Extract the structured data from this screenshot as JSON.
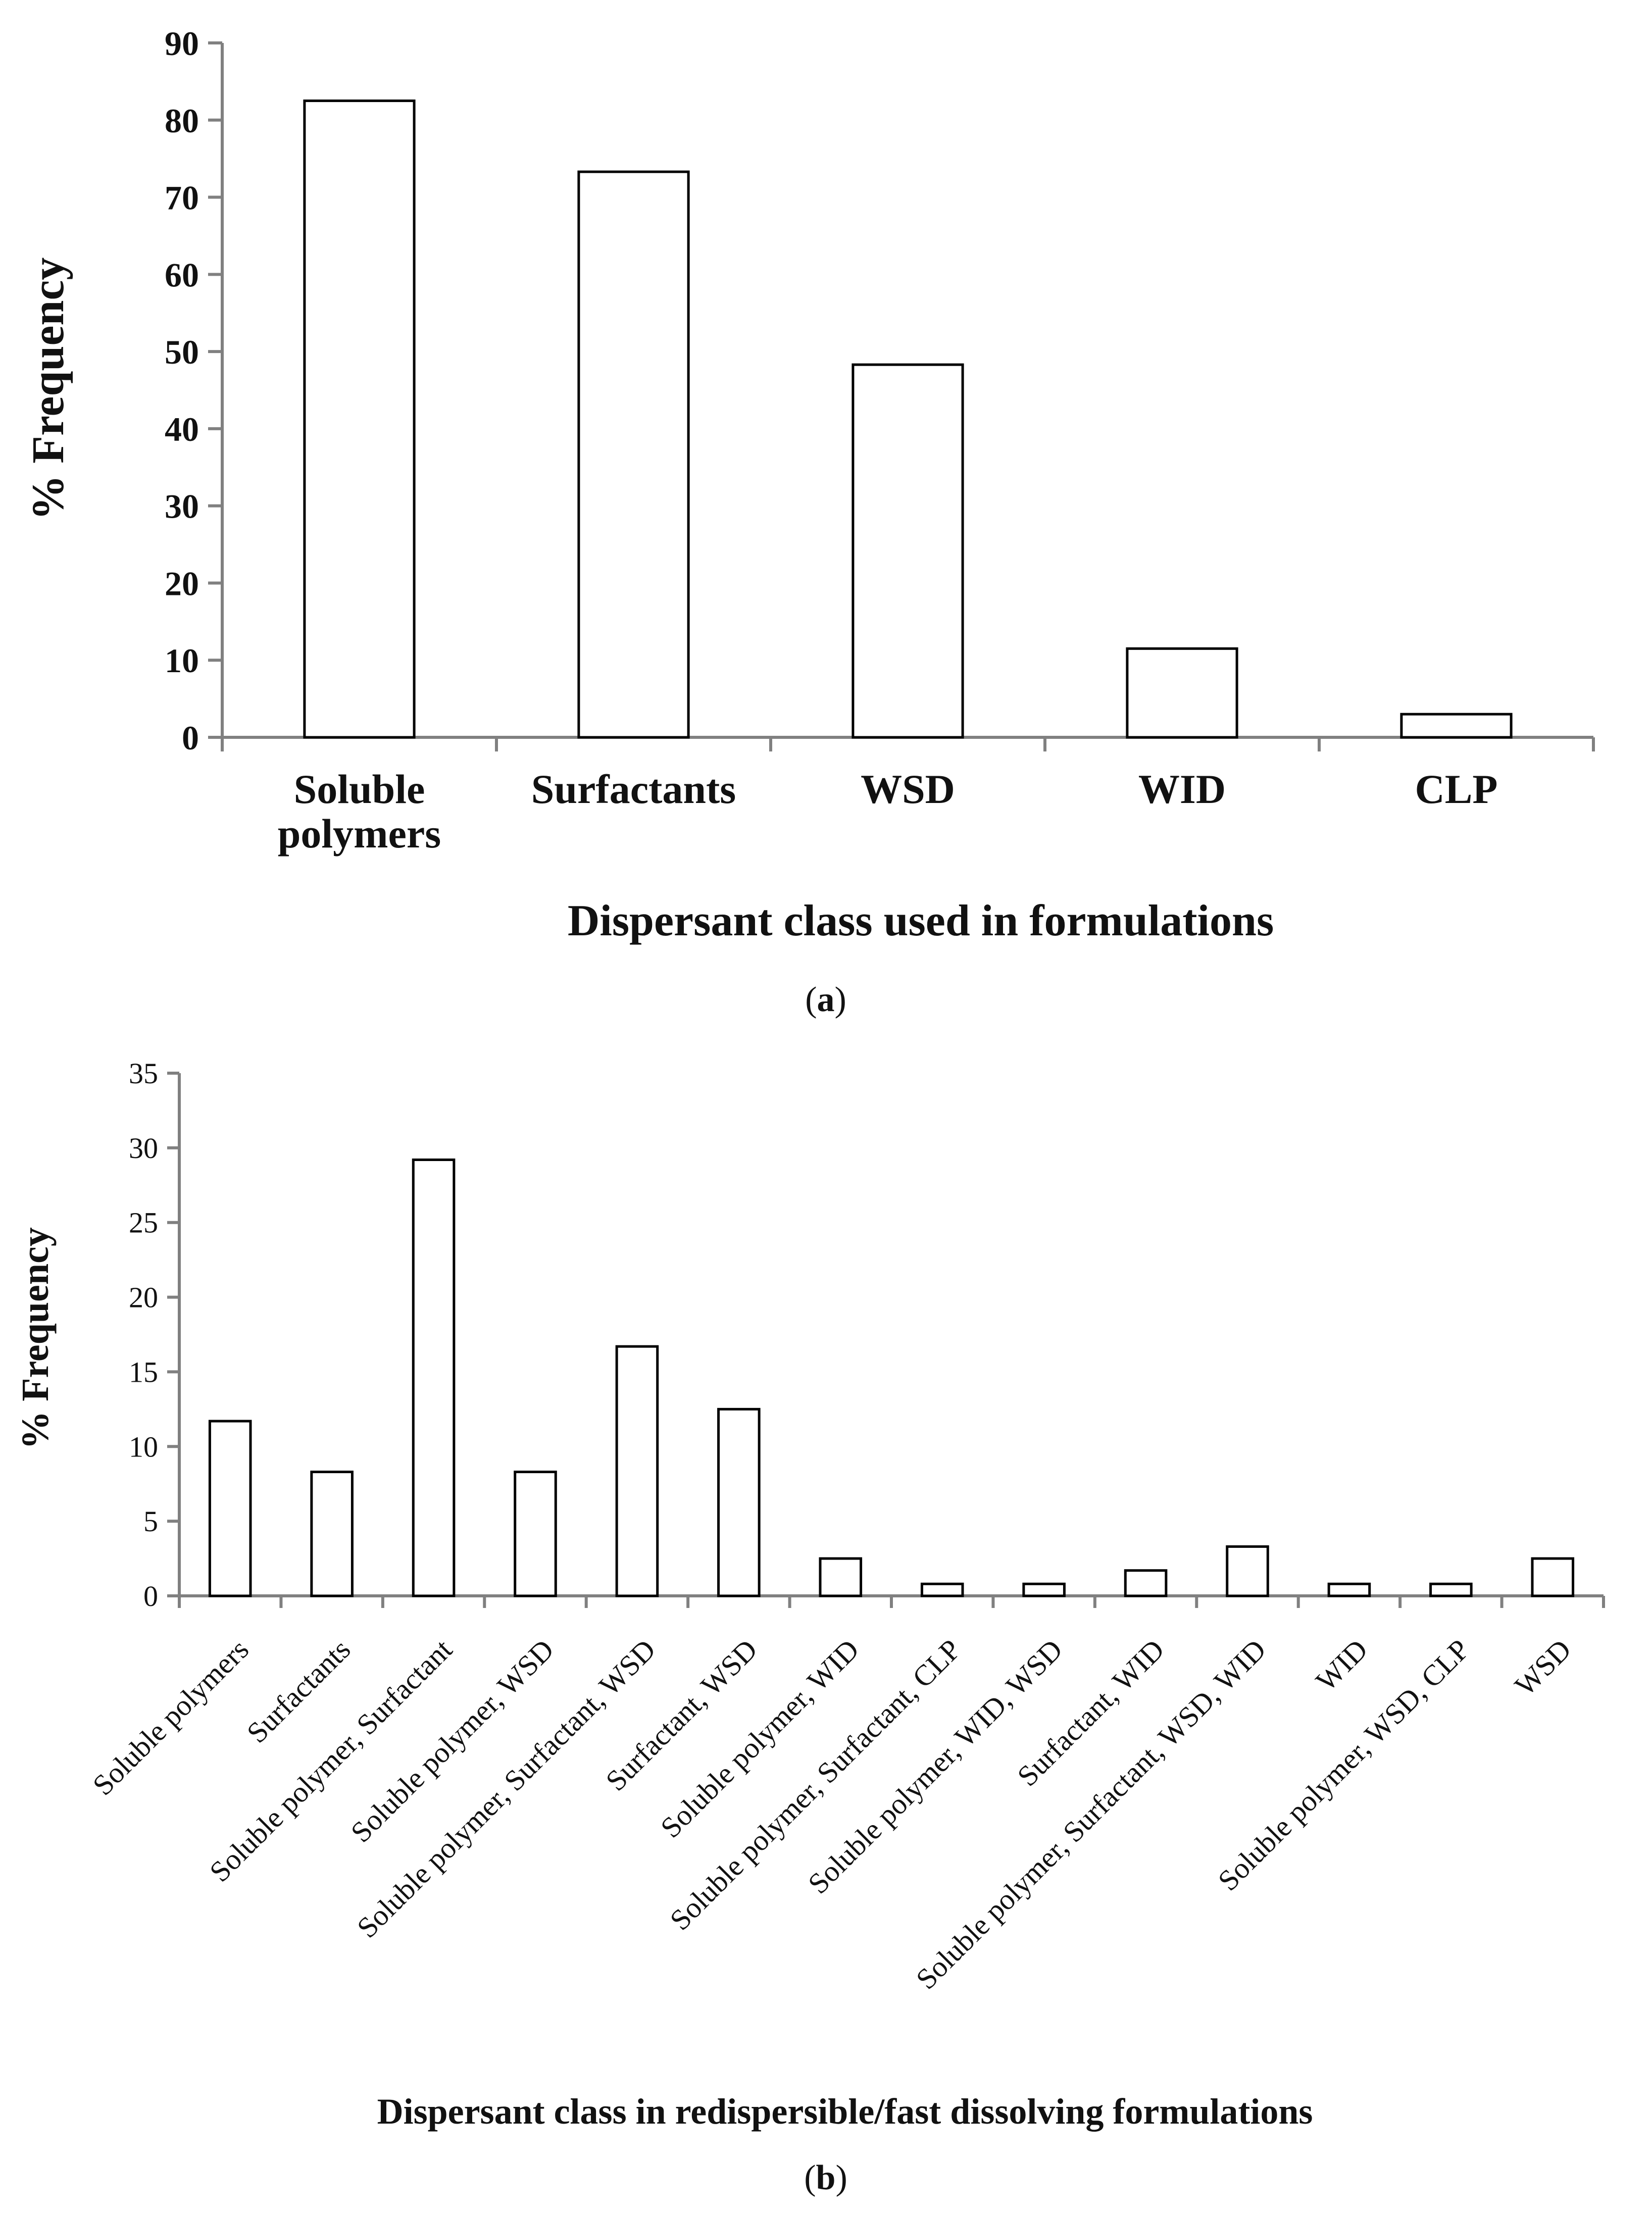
{
  "chart_data": [
    {
      "type": "bar",
      "panel": "a",
      "caption": {
        "open": "(",
        "letter": "a",
        "close": ")"
      },
      "categories": [
        [
          "Soluble",
          "polymers"
        ],
        [
          "Surfactants"
        ],
        [
          "WSD"
        ],
        [
          "WID"
        ],
        [
          "CLP"
        ]
      ],
      "values": [
        82.5,
        73.3,
        48.3,
        11.5,
        3.0
      ],
      "xlabel": "Dispersant class used in formulations",
      "ylabel": "% Frequency",
      "ylim": [
        0,
        90
      ],
      "yticks": [
        0,
        10,
        20,
        30,
        40,
        50,
        60,
        70,
        80,
        90
      ],
      "grid": false,
      "legend": "none"
    },
    {
      "type": "bar",
      "panel": "b",
      "caption": {
        "open": "(",
        "letter": "b",
        "close": ")"
      },
      "categories": [
        "Soluble polymers",
        "Surfactants",
        "Soluble polymer, Surfactant",
        "Soluble polymer, WSD",
        "Soluble polymer, Surfactant, WSD",
        "Surfactant, WSD",
        "Soluble polymer, WID",
        "Soluble polymer, Surfactant, CLP",
        "Soluble polymer, WID, WSD",
        "Surfactant, WID",
        "Soluble polymer, Surfactant, WSD, WID",
        "WID",
        "Soluble polymer, WSD, CLP",
        "WSD"
      ],
      "values": [
        11.7,
        8.3,
        29.2,
        8.3,
        16.7,
        12.5,
        2.5,
        0.8,
        0.8,
        1.7,
        3.3,
        0.8,
        0.8,
        2.5
      ],
      "xlabel": "Dispersant class in redispersible/fast dissolving formulations",
      "ylabel": "% Frequency",
      "ylim": [
        0,
        35
      ],
      "yticks": [
        0,
        5,
        10,
        15,
        20,
        25,
        30,
        35
      ],
      "grid": false,
      "legend": "none"
    }
  ]
}
